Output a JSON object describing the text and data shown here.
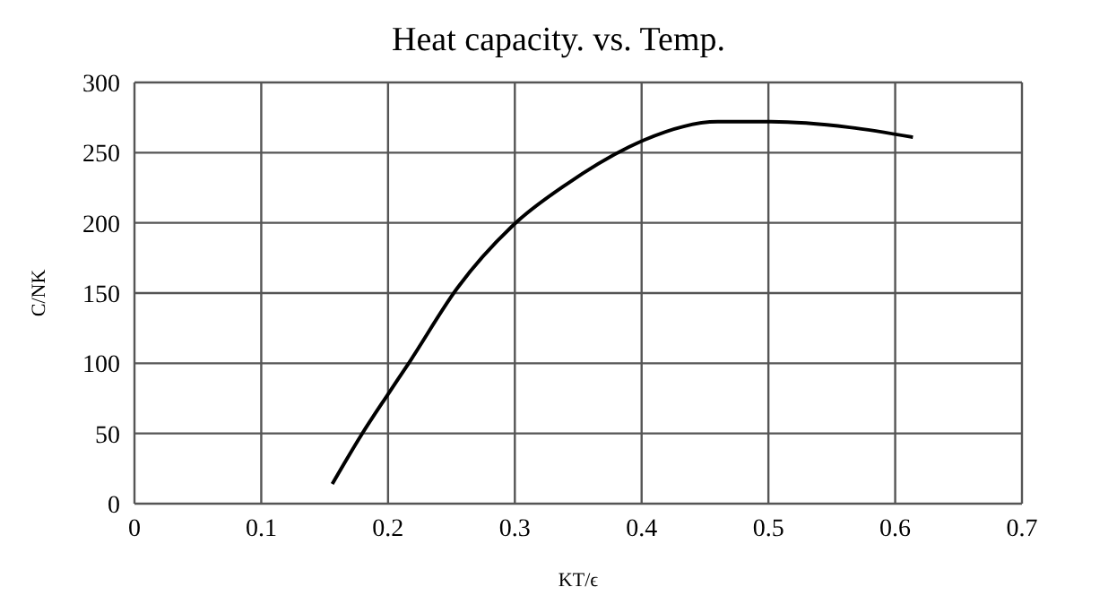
{
  "chart_data": {
    "type": "line",
    "title": "Heat capacity. vs. Temp.",
    "xlabel": "KT/ϵ",
    "ylabel": "C/NK",
    "x": [
      0.156,
      0.179,
      0.2,
      0.217,
      0.255,
      0.302,
      0.34,
      0.39,
      0.402,
      0.46,
      0.502,
      0.564,
      0.614
    ],
    "series": [
      {
        "color": "#000000",
        "values": [
          14,
          49,
          78,
          101,
          154,
          201,
          227,
          254,
          259,
          272,
          272,
          268,
          261
        ]
      }
    ],
    "xlim": [
      0,
      0.7
    ],
    "xticks": [
      0,
      0.1,
      0.2,
      0.3,
      0.4,
      0.5,
      0.6,
      0.7
    ],
    "ylim": [
      0,
      300
    ],
    "yticks": [
      0,
      50,
      100,
      150,
      200,
      250,
      300
    ],
    "grid": true,
    "marker": "none",
    "line_style": "solid"
  }
}
